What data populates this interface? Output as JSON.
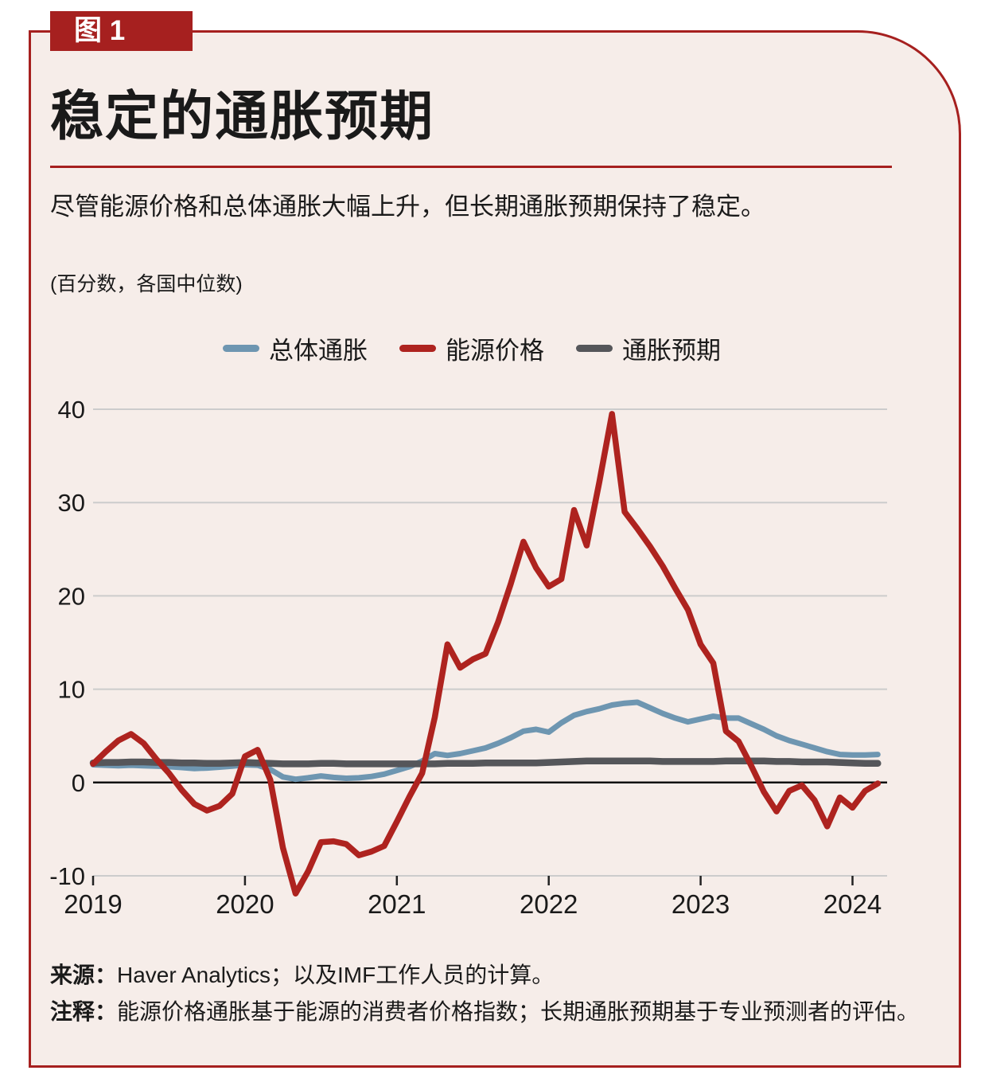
{
  "figure": {
    "badge": "图 1",
    "title": "稳定的通胀预期",
    "subtitle": "尽管能源价格和总体通胀大幅上升，但长期通胀预期保持了稳定。",
    "units_note": "(百分数，各国中位数)",
    "source_label": "来源：",
    "source_text": "Haver Analytics；以及IMF工作人员的计算。",
    "note_label": "注释：",
    "note_text": "能源价格通胀基于能源的消费者价格指数；长期通胀预期基于专业预测者的评估。"
  },
  "colors": {
    "accent_red": "#a6201f",
    "card_background": "#f6ede9",
    "page_background": "#ffffff",
    "grid": "#cccccc",
    "zero_axis": "#111111",
    "text": "#1a1a1a"
  },
  "chart_data": {
    "type": "line",
    "title": "稳定的通胀预期",
    "units": "百分数，各国中位数",
    "x_unit": "month",
    "x_start": "2019-01",
    "x_end": "2024-03",
    "x_tick_labels": [
      "2019",
      "2020",
      "2021",
      "2022",
      "2023",
      "2024"
    ],
    "ylim": [
      -10,
      40
    ],
    "yticks": [
      40,
      30,
      20,
      10,
      0,
      -10
    ],
    "grid": "horizontal",
    "legend_position": "top",
    "series": [
      {
        "id": "headline-inflation",
        "name": "总体通胀",
        "color": "#6e96b1",
        "values": [
          1.9,
          1.85,
          1.8,
          1.85,
          1.8,
          1.75,
          1.7,
          1.6,
          1.5,
          1.55,
          1.65,
          1.75,
          1.9,
          1.85,
          1.4,
          0.6,
          0.35,
          0.5,
          0.7,
          0.55,
          0.45,
          0.5,
          0.65,
          0.9,
          1.3,
          1.7,
          2.3,
          3.1,
          2.9,
          3.1,
          3.4,
          3.7,
          4.2,
          4.8,
          5.5,
          5.7,
          5.4,
          6.4,
          7.2,
          7.6,
          7.9,
          8.3,
          8.5,
          8.6,
          8.0,
          7.4,
          6.9,
          6.5,
          6.8,
          7.1,
          6.9,
          6.9,
          6.3,
          5.7,
          5.0,
          4.5,
          4.1,
          3.7,
          3.3,
          3.0,
          2.95,
          2.95,
          3.0
        ]
      },
      {
        "id": "energy-prices",
        "name": "能源价格",
        "color": "#ae231f",
        "values": [
          2.0,
          3.3,
          4.5,
          5.2,
          4.2,
          2.5,
          1.0,
          -0.8,
          -2.3,
          -3.0,
          -2.5,
          -1.2,
          2.8,
          3.5,
          0.3,
          -7.0,
          -11.9,
          -9.5,
          -6.4,
          -6.3,
          -6.6,
          -7.8,
          -7.4,
          -6.8,
          -4.2,
          -1.5,
          1.0,
          7.0,
          14.8,
          12.3,
          13.2,
          13.8,
          17.2,
          21.3,
          25.8,
          23.0,
          21.0,
          21.8,
          29.2,
          25.4,
          32.2,
          39.5,
          29.0,
          27.2,
          25.3,
          23.2,
          20.8,
          18.5,
          14.8,
          12.8,
          5.5,
          4.4,
          1.8,
          -1.0,
          -3.1,
          -0.9,
          -0.3,
          -1.9,
          -4.7,
          -1.6,
          -2.7,
          -0.9,
          -0.1
        ]
      },
      {
        "id": "inflation-expectations",
        "name": "通胀预期",
        "color": "#55565a",
        "values": [
          2.1,
          2.15,
          2.15,
          2.2,
          2.2,
          2.15,
          2.15,
          2.1,
          2.1,
          2.05,
          2.05,
          2.1,
          2.15,
          2.1,
          2.05,
          2.0,
          2.0,
          2.0,
          2.05,
          2.05,
          2.0,
          2.0,
          2.0,
          2.0,
          2.0,
          2.0,
          2.0,
          2.0,
          2.05,
          2.05,
          2.05,
          2.1,
          2.1,
          2.1,
          2.1,
          2.1,
          2.15,
          2.2,
          2.25,
          2.3,
          2.3,
          2.3,
          2.3,
          2.3,
          2.3,
          2.25,
          2.25,
          2.25,
          2.25,
          2.25,
          2.3,
          2.3,
          2.3,
          2.3,
          2.25,
          2.25,
          2.2,
          2.2,
          2.2,
          2.15,
          2.1,
          2.05,
          2.05
        ]
      }
    ]
  }
}
